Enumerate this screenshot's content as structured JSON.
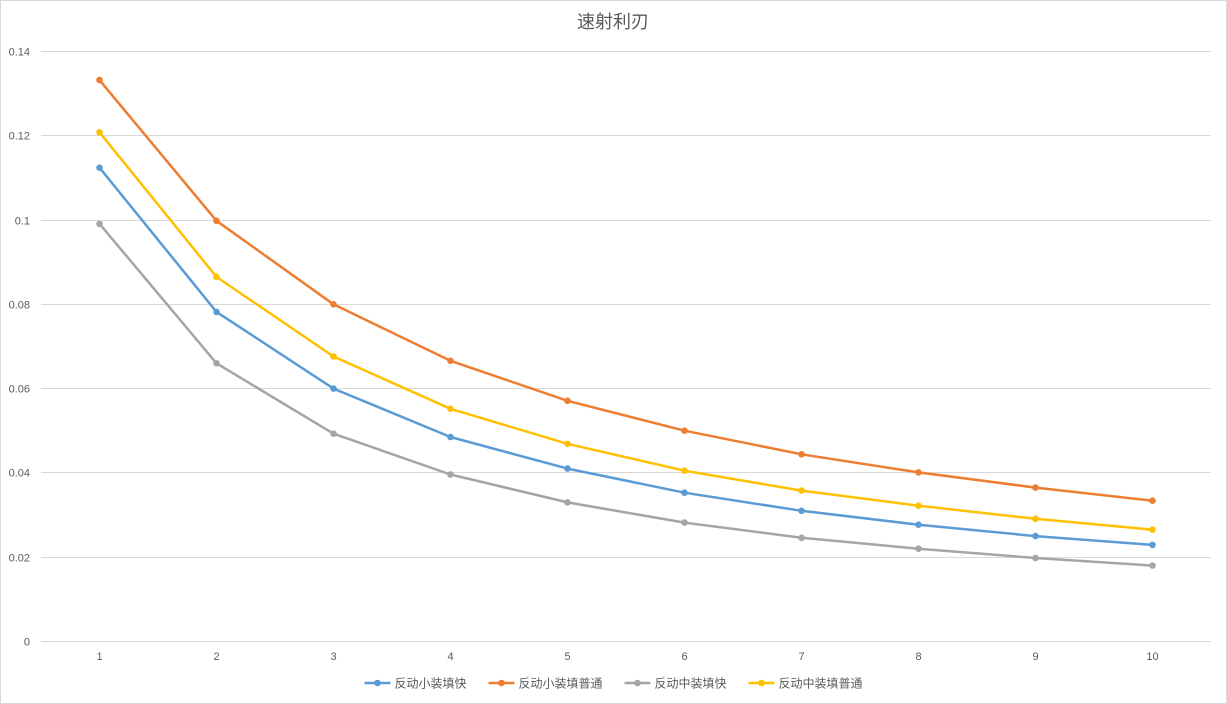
{
  "chart_data": {
    "type": "line",
    "title": "速射利刃",
    "xlabel": "",
    "ylabel": "",
    "categories": [
      "1",
      "2",
      "3",
      "4",
      "5",
      "6",
      "7",
      "8",
      "9",
      "10"
    ],
    "ylim": [
      0,
      0.14
    ],
    "yticks": [
      "0",
      "0.02",
      "0.04",
      "0.06",
      "0.08",
      "0.1",
      "0.12",
      "0.14"
    ],
    "grid": true,
    "legend_position": "bottom",
    "series": [
      {
        "name": "反动小装填快",
        "color": "#5b9bd5",
        "values": [
          0.1123,
          0.0781,
          0.0599,
          0.0484,
          0.0409,
          0.0352,
          0.0309,
          0.0276,
          0.0249,
          0.0228
        ]
      },
      {
        "name": "反动小装填普通",
        "color": "#ed7d31",
        "values": [
          0.1331,
          0.0997,
          0.0799,
          0.0665,
          0.057,
          0.0499,
          0.0443,
          0.04,
          0.0364,
          0.0333
        ]
      },
      {
        "name": "反动中装填快",
        "color": "#a5a5a5",
        "values": [
          0.099,
          0.0659,
          0.0492,
          0.0395,
          0.0329,
          0.0281,
          0.0245,
          0.0219,
          0.0197,
          0.0179
        ]
      },
      {
        "name": "反动中装填普通",
        "color": "#ffc000",
        "values": [
          0.1207,
          0.0864,
          0.0675,
          0.0551,
          0.0468,
          0.0404,
          0.0357,
          0.0321,
          0.029,
          0.0264
        ]
      }
    ]
  }
}
